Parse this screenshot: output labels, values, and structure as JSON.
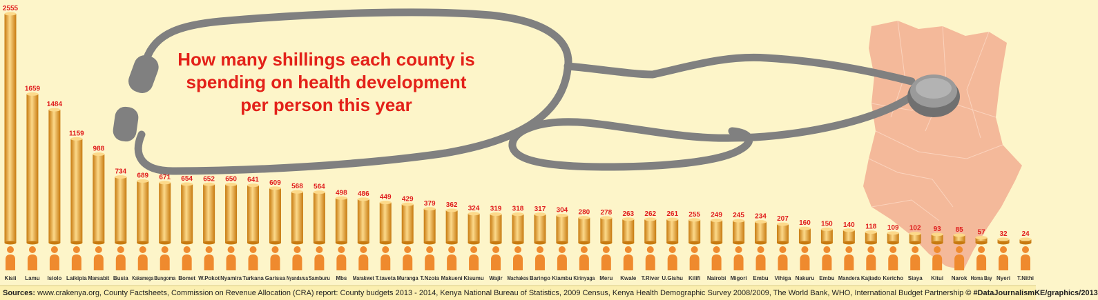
{
  "title_lines": [
    "How many shillings each county is",
    "spending on health development",
    "per person this year"
  ],
  "footer": {
    "lead": "Sources:",
    "text": " www.crakenya.org, County Factsheets, Commission on Revenue Allocation (CRA) report: County budgets 2013 - 2014, Kenya National Bureau of Statistics, 2009 Census, Kenya Health Demographic Survey 2008/2009, The World Bank, WHO, International Budget Partnership ",
    "credit": "© #DataJournalismKE/graphics/2013"
  },
  "colors": {
    "bar": "#f1a62a",
    "bar_light": "#fcd98a",
    "bar_dark": "#c77a10",
    "person": "#ef8a2e",
    "value_label": "#e01d1d",
    "title": "#e32119",
    "stethoscope": "#808080",
    "map": "#f4b99a"
  },
  "chart_data": {
    "type": "bar",
    "title": "How many shillings each county is spending on health development per person this year",
    "xlabel": "",
    "ylabel": "",
    "ylim": [
      0,
      2555
    ],
    "categories": [
      "Kisii",
      "Lamu",
      "Isiolo",
      "Laikipia",
      "Marsabit",
      "Busia",
      "Kakamega",
      "Bungoma",
      "Bomet",
      "W.Pokot",
      "Nyamira",
      "Turkana",
      "Garissa",
      "Nyandarua",
      "Samburu",
      "Mbs",
      "Marakwet",
      "T.taveta",
      "Muranga",
      "T.Nzoia",
      "Makueni",
      "Kisumu",
      "Wajir",
      "Machakos",
      "Baringo",
      "Kiambu",
      "Kirinyaga",
      "Meru",
      "Kwale",
      "T.River",
      "U.Gishu",
      "Kilifi",
      "Nairobi",
      "Migori",
      "Embu",
      "Vihiga",
      "Nakuru",
      "Embu",
      "Mandera",
      "Kajiado",
      "Kericho",
      "Siaya",
      "Kitui",
      "Narok",
      "Homa Bay",
      "Nyeri",
      "T.Nithi"
    ],
    "values": [
      2555,
      1659,
      1484,
      1159,
      988,
      734,
      689,
      671,
      654,
      652,
      650,
      641,
      609,
      568,
      564,
      498,
      486,
      449,
      429,
      379,
      362,
      324,
      319,
      318,
      317,
      304,
      280,
      278,
      263,
      262,
      261,
      255,
      249,
      245,
      234,
      207,
      160,
      150,
      140,
      118,
      109,
      102,
      93,
      85,
      57,
      32,
      24
    ]
  }
}
